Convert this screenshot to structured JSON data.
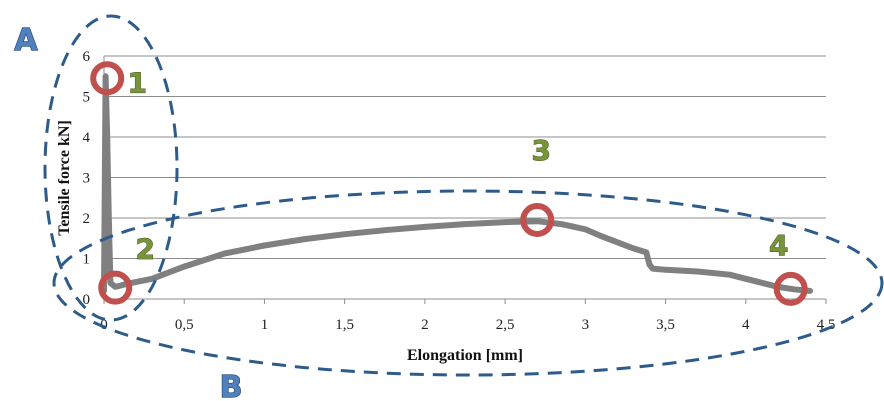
{
  "chart_data": {
    "type": "line",
    "xlabel": "Elongation [mm]",
    "ylabel": "Tensile force kN]",
    "xlim": [
      0,
      4.5
    ],
    "ylim": [
      0,
      6
    ],
    "x_ticks": [
      "0",
      "0,5",
      "1",
      "1,5",
      "2",
      "2,5",
      "3",
      "3,5",
      "4",
      "4,5"
    ],
    "y_ticks": [
      "0",
      "1",
      "2",
      "3",
      "4",
      "5",
      "6"
    ],
    "grid": "horizontal",
    "series": [
      {
        "color": "#808080",
        "x": [
          0.0,
          0.01,
          0.02,
          0.03,
          0.04,
          0.07,
          0.15,
          0.3,
          0.5,
          0.75,
          1.0,
          1.25,
          1.5,
          1.75,
          2.0,
          2.25,
          2.5,
          2.7,
          2.85,
          3.0,
          3.1,
          3.2,
          3.3,
          3.38,
          3.4,
          3.42,
          3.5,
          3.7,
          3.9,
          4.0,
          4.1,
          4.2,
          4.3,
          4.4
        ],
        "y": [
          0.2,
          5.5,
          4.0,
          2.0,
          0.4,
          0.3,
          0.38,
          0.5,
          0.8,
          1.12,
          1.32,
          1.48,
          1.6,
          1.7,
          1.78,
          1.85,
          1.9,
          1.92,
          1.85,
          1.72,
          1.55,
          1.4,
          1.25,
          1.15,
          0.85,
          0.75,
          0.72,
          0.68,
          0.6,
          0.5,
          0.4,
          0.3,
          0.24,
          0.2
        ]
      }
    ],
    "markers": [
      {
        "label": "1",
        "x": 0.02,
        "y": 5.45
      },
      {
        "label": "2",
        "x": 0.07,
        "y": 0.28
      },
      {
        "label": "3",
        "x": 2.7,
        "y": 1.95
      },
      {
        "label": "4",
        "x": 4.28,
        "y": 0.25
      }
    ],
    "groups": [
      {
        "label": "A"
      },
      {
        "label": "B"
      }
    ],
    "colors": {
      "line": "#808080",
      "marker": "#c0504d",
      "group": "#2e5c8a",
      "group_label": "#4f81bd",
      "point_label": "#77933c"
    }
  }
}
